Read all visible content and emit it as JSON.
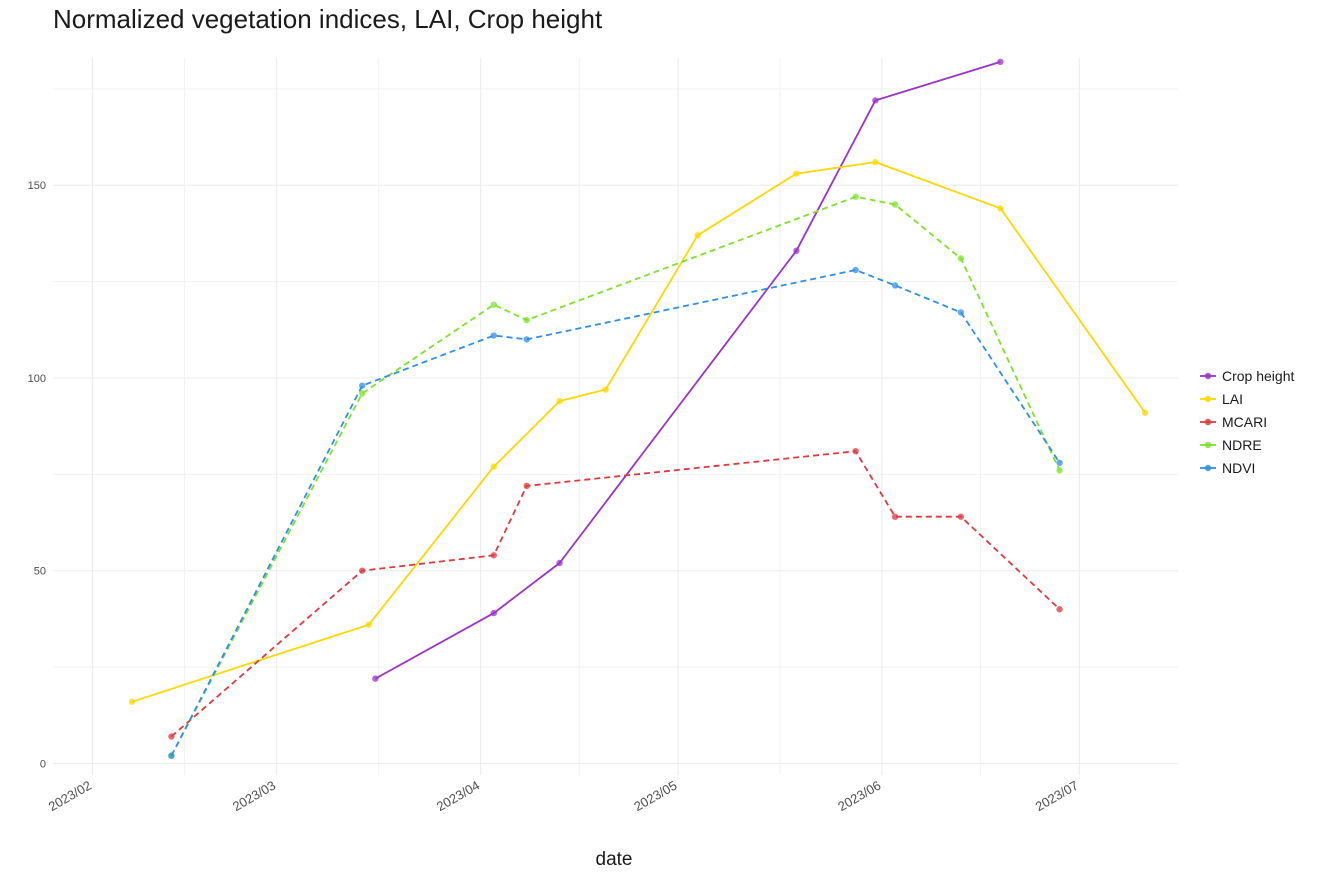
{
  "chart_data": {
    "type": "line",
    "title": "Normalized vegetation indices, LAI, Crop height",
    "xlabel": "date",
    "ylabel": "",
    "xlim": [
      "2023-01-26",
      "2023-07-16"
    ],
    "ylim": [
      -3,
      183
    ],
    "grid": true,
    "legend_position": "right",
    "x_ticks": [
      {
        "date": "2023-02-01",
        "label": "2023/02"
      },
      {
        "date": "2023-03-01",
        "label": "2023/03"
      },
      {
        "date": "2023-04-01",
        "label": "2023/04"
      },
      {
        "date": "2023-05-01",
        "label": "2023/05"
      },
      {
        "date": "2023-06-01",
        "label": "2023/06"
      },
      {
        "date": "2023-07-01",
        "label": "2023/07"
      }
    ],
    "y_ticks": [
      0,
      50,
      100,
      150
    ],
    "series": [
      {
        "name": "Crop height",
        "color": "#9a32cd",
        "dash": "solid",
        "points": [
          {
            "x": "2023-03-16",
            "y": 22
          },
          {
            "x": "2023-04-03",
            "y": 39
          },
          {
            "x": "2023-04-13",
            "y": 52
          },
          {
            "x": "2023-05-19",
            "y": 133
          },
          {
            "x": "2023-05-31",
            "y": 172
          },
          {
            "x": "2023-06-19",
            "y": 182
          }
        ]
      },
      {
        "name": "LAI",
        "color": "#ffd700",
        "dash": "solid",
        "points": [
          {
            "x": "2023-02-07",
            "y": 16
          },
          {
            "x": "2023-03-15",
            "y": 36
          },
          {
            "x": "2023-04-03",
            "y": 77
          },
          {
            "x": "2023-04-13",
            "y": 94
          },
          {
            "x": "2023-04-20",
            "y": 97
          },
          {
            "x": "2023-05-04",
            "y": 137
          },
          {
            "x": "2023-05-19",
            "y": 153
          },
          {
            "x": "2023-05-31",
            "y": 156
          },
          {
            "x": "2023-06-19",
            "y": 144
          },
          {
            "x": "2023-07-11",
            "y": 91
          }
        ]
      },
      {
        "name": "MCARI",
        "color": "#e0383e",
        "dash": "dashed",
        "points": [
          {
            "x": "2023-02-13",
            "y": 7
          },
          {
            "x": "2023-03-14",
            "y": 50
          },
          {
            "x": "2023-04-03",
            "y": 54
          },
          {
            "x": "2023-04-08",
            "y": 72
          },
          {
            "x": "2023-05-28",
            "y": 81
          },
          {
            "x": "2023-06-03",
            "y": 64
          },
          {
            "x": "2023-06-13",
            "y": 64
          },
          {
            "x": "2023-06-28",
            "y": 40
          }
        ]
      },
      {
        "name": "NDRE",
        "color": "#7ce22a",
        "dash": "dashed",
        "points": [
          {
            "x": "2023-02-13",
            "y": 2
          },
          {
            "x": "2023-03-14",
            "y": 96
          },
          {
            "x": "2023-04-03",
            "y": 119
          },
          {
            "x": "2023-04-08",
            "y": 115
          },
          {
            "x": "2023-05-28",
            "y": 147
          },
          {
            "x": "2023-06-03",
            "y": 145
          },
          {
            "x": "2023-06-13",
            "y": 131
          },
          {
            "x": "2023-06-28",
            "y": 76
          }
        ]
      },
      {
        "name": "NDVI",
        "color": "#2e8fe6",
        "dash": "dashed",
        "points": [
          {
            "x": "2023-02-13",
            "y": 2
          },
          {
            "x": "2023-03-14",
            "y": 98
          },
          {
            "x": "2023-04-03",
            "y": 111
          },
          {
            "x": "2023-04-08",
            "y": 110
          },
          {
            "x": "2023-05-28",
            "y": 128
          },
          {
            "x": "2023-06-03",
            "y": 124
          },
          {
            "x": "2023-06-13",
            "y": 117
          },
          {
            "x": "2023-06-28",
            "y": 78
          }
        ]
      }
    ]
  }
}
